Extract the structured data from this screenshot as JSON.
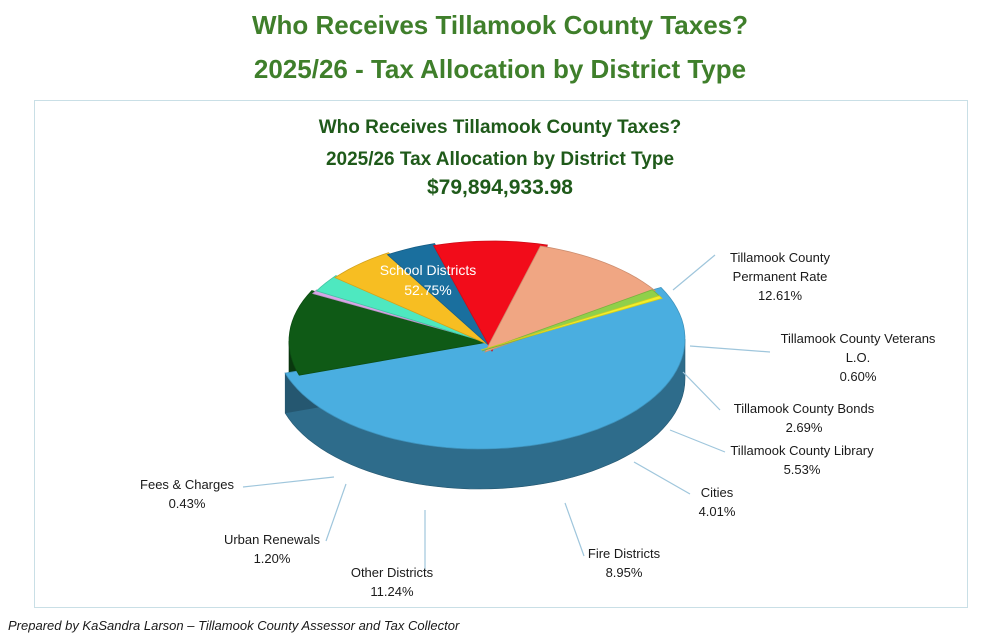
{
  "page": {
    "title_line1": "Who Receives Tillamook County Taxes?",
    "title_line2": "2025/26 - Tax Allocation by District Type",
    "footer": "Prepared by KaSandra Larson – Tillamook County Assessor and Tax Collector"
  },
  "chart_data": {
    "type": "pie",
    "title_lines": [
      "Who Receives Tillamook County Taxes?",
      "2025/26 Tax Allocation by District Type",
      "$79,894,933.98"
    ],
    "total": "$79,894,933.98",
    "slices": [
      {
        "name": "School Districts",
        "label_lines": [
          "School Districts"
        ],
        "value": 52.75,
        "pct_label": "52.75%",
        "color": "#4aaee0"
      },
      {
        "name": "Tillamook County Permanent Rate",
        "label_lines": [
          "Tillamook County",
          "Permanent Rate"
        ],
        "value": 12.61,
        "pct_label": "12.61%",
        "color": "#0f5a16"
      },
      {
        "name": "Tillamook County Veterans L.O.",
        "label_lines": [
          "Tillamook County Veterans",
          "L.O."
        ],
        "value": 0.6,
        "pct_label": "0.60%",
        "color": "#d7a6e6"
      },
      {
        "name": "Tillamook County Bonds",
        "label_lines": [
          "Tillamook County Bonds"
        ],
        "value": 2.69,
        "pct_label": "2.69%",
        "color": "#4ee8c0"
      },
      {
        "name": "Tillamook County Library",
        "label_lines": [
          "Tillamook County Library"
        ],
        "value": 5.53,
        "pct_label": "5.53%",
        "color": "#f7be22"
      },
      {
        "name": "Cities",
        "label_lines": [
          "Cities"
        ],
        "value": 4.01,
        "pct_label": "4.01%",
        "color": "#1a6f9e"
      },
      {
        "name": "Fire Districts",
        "label_lines": [
          "Fire Districts"
        ],
        "value": 8.95,
        "pct_label": "8.95%",
        "color": "#f20c1a"
      },
      {
        "name": "Other Districts",
        "label_lines": [
          "Other Districts"
        ],
        "value": 11.24,
        "pct_label": "11.24%",
        "color": "#f0a683"
      },
      {
        "name": "Urban Renewals",
        "label_lines": [
          "Urban Renewals"
        ],
        "value": 1.2,
        "pct_label": "1.20%",
        "color": "#90d04a"
      },
      {
        "name": "Fees & Charges",
        "label_lines": [
          "Fees & Charges"
        ],
        "value": 0.43,
        "pct_label": "0.43%",
        "color": "#f2ee2a"
      }
    ],
    "legend": "none",
    "data_labels": "outside with leader lines"
  }
}
